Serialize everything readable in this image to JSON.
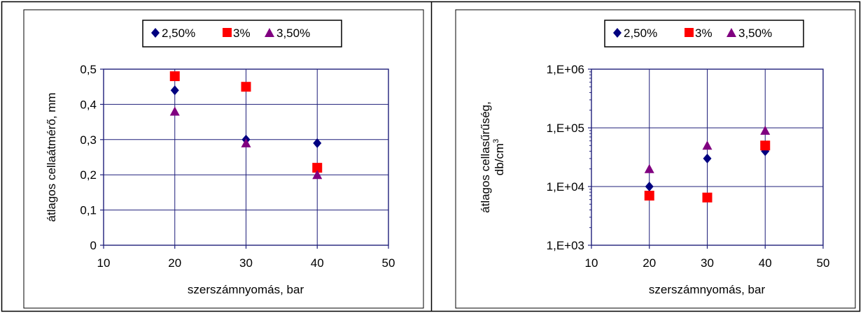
{
  "chart_data": [
    {
      "type": "scatter",
      "xlabel": "szerszámnyomás, bar",
      "ylabel": "átlagos cellaátmérő, mm",
      "xlim": [
        10,
        50
      ],
      "ylim": [
        0,
        0.5
      ],
      "yscale": "linear",
      "xticks": [
        10,
        20,
        30,
        40,
        50
      ],
      "xtick_labels": [
        "10",
        "20",
        "30",
        "40",
        "50"
      ],
      "yticks": [
        0,
        0.1,
        0.2,
        0.3,
        0.4,
        0.5
      ],
      "ytick_labels": [
        "0",
        "0,1",
        "0,2",
        "0,3",
        "0,4",
        "0,5"
      ],
      "grid": true,
      "legend": "top-center",
      "series": [
        {
          "name": "2,50%",
          "marker": "diamond",
          "color": "#000080",
          "x": [
            20,
            30,
            40
          ],
          "y": [
            0.44,
            0.3,
            0.29
          ]
        },
        {
          "name": "3%",
          "marker": "square",
          "color": "#ff0000",
          "x": [
            20,
            30,
            40
          ],
          "y": [
            0.48,
            0.45,
            0.22
          ]
        },
        {
          "name": "3,50%",
          "marker": "triangle",
          "color": "#800080",
          "x": [
            20,
            30,
            40
          ],
          "y": [
            0.38,
            0.29,
            0.2
          ]
        }
      ]
    },
    {
      "type": "scatter",
      "xlabel": "szerszámnyomás, bar",
      "ylabel_line1": "átlagos cellasűrűség,",
      "ylabel_line2_base": "db/cm",
      "ylabel_line2_sup": "3",
      "xlim": [
        10,
        50
      ],
      "ylim": [
        1000,
        1000000
      ],
      "yscale": "log",
      "xticks": [
        10,
        20,
        30,
        40,
        50
      ],
      "xtick_labels": [
        "10",
        "20",
        "30",
        "40",
        "50"
      ],
      "yticks": [
        1000,
        10000,
        100000,
        1000000
      ],
      "ytick_labels": [
        "1,E+03",
        "1,E+04",
        "1,E+05",
        "1,E+06"
      ],
      "grid": true,
      "legend": "top-center",
      "series": [
        {
          "name": "2,50%",
          "marker": "diamond",
          "color": "#000080",
          "x": [
            20,
            30,
            40
          ],
          "y": [
            10000,
            30000,
            40000
          ]
        },
        {
          "name": "3%",
          "marker": "square",
          "color": "#ff0000",
          "x": [
            20,
            30,
            40
          ],
          "y": [
            7000,
            6500,
            50000
          ]
        },
        {
          "name": "3,50%",
          "marker": "triangle",
          "color": "#800080",
          "x": [
            20,
            30,
            40
          ],
          "y": [
            20000,
            50000,
            90000
          ]
        }
      ]
    }
  ]
}
